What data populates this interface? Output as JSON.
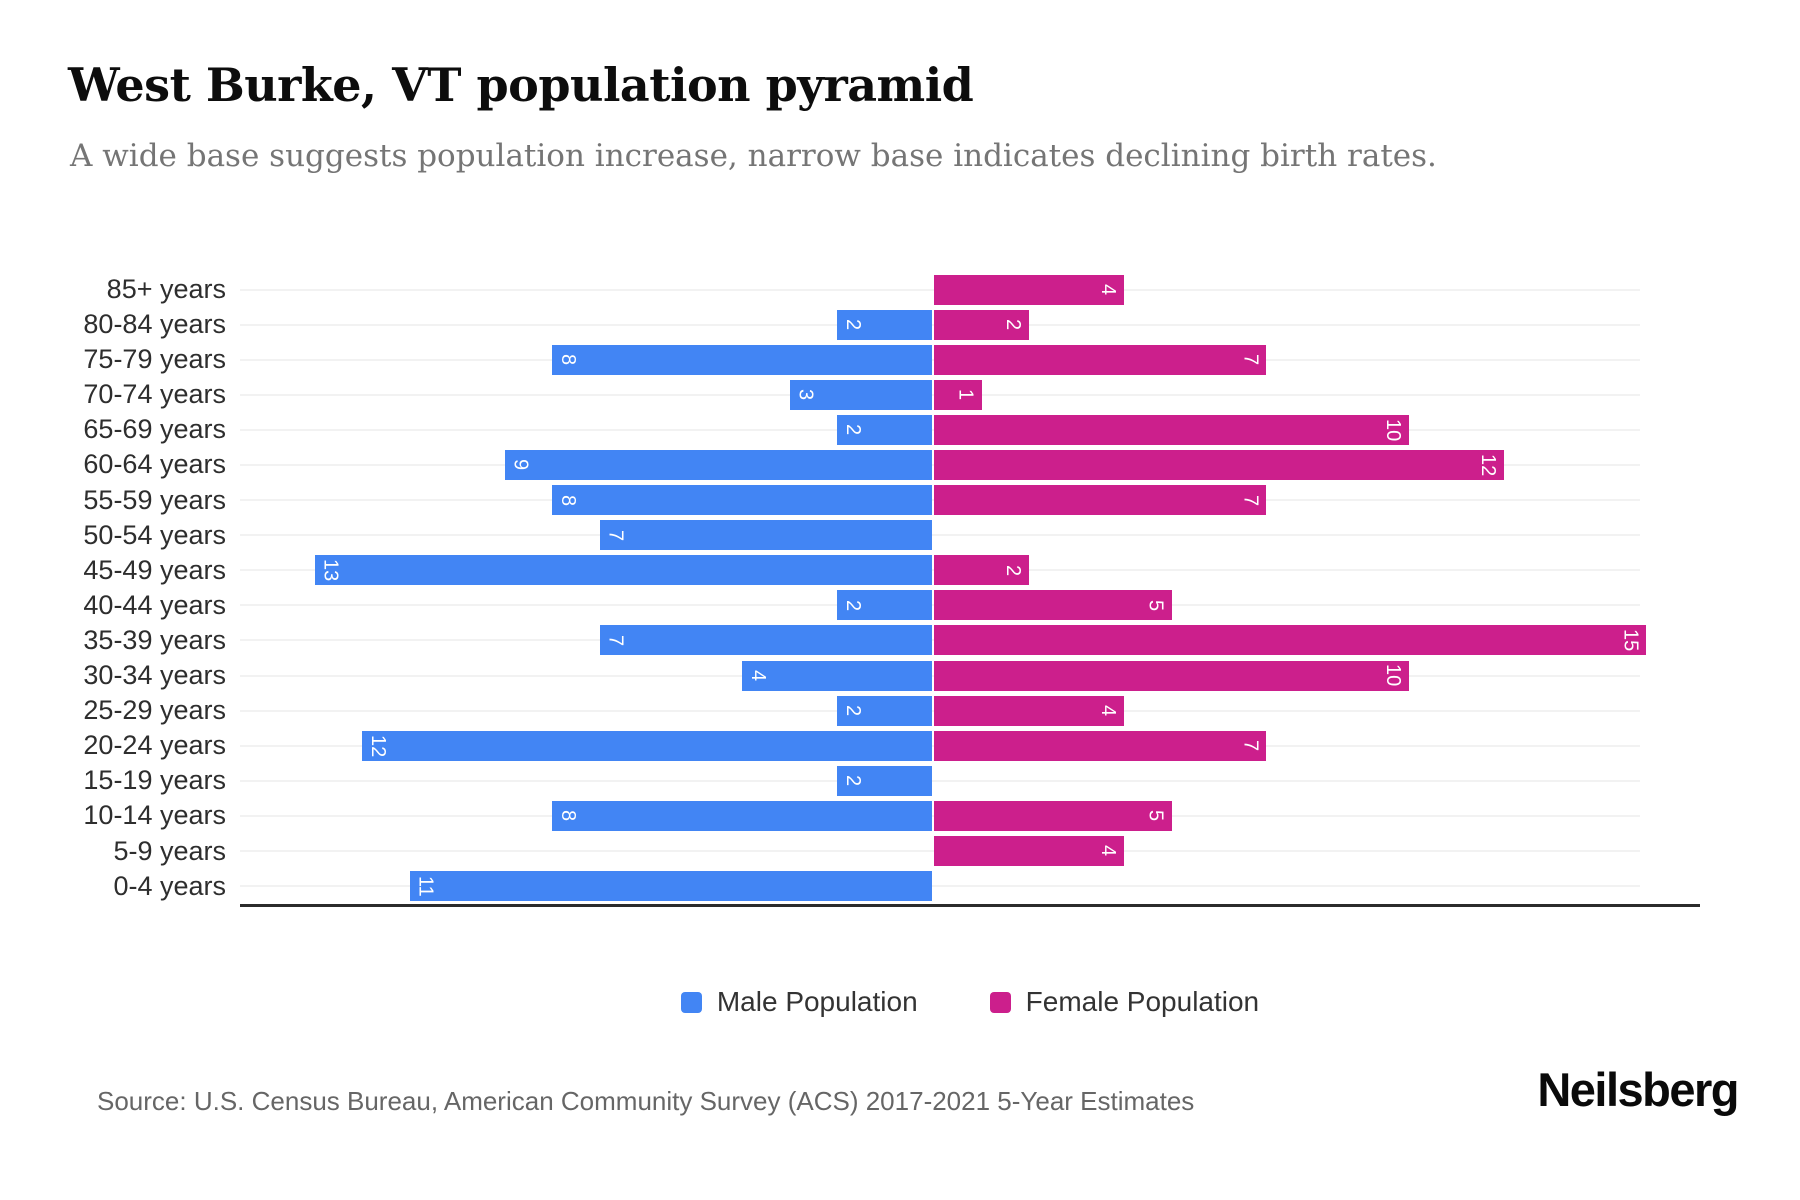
{
  "title": "West Burke, VT population pyramid",
  "subtitle": "A wide base suggests population increase, narrow base indicates declining birth rates.",
  "source": "Source: U.S. Census Bureau, American Community Survey (ACS) 2017-2021 5-Year Estimates",
  "brand": "Neilsberg",
  "legend": {
    "male_label": "Male Population",
    "female_label": "Female Population"
  },
  "colors": {
    "male": "#4285F4",
    "female": "#CC1F8C",
    "grid": "#f2f2f2",
    "axis": "#2b2b2b"
  },
  "chart_data": {
    "type": "bar",
    "variant": "population-pyramid",
    "title": "West Burke, VT population pyramid",
    "subtitle": "A wide base suggests population increase, narrow base indicates declining birth rates.",
    "categories": [
      "85+ years",
      "80-84 years",
      "75-79 years",
      "70-74 years",
      "65-69 years",
      "60-64 years",
      "55-59 years",
      "50-54 years",
      "45-49 years",
      "40-44 years",
      "35-39 years",
      "30-34 years",
      "25-29 years",
      "20-24 years",
      "15-19 years",
      "10-14 years",
      "5-9 years",
      "0-4 years"
    ],
    "series": [
      {
        "name": "Male Population",
        "direction": "left",
        "color": "#4285F4",
        "values": [
          0,
          2,
          8,
          3,
          2,
          9,
          8,
          7,
          13,
          2,
          7,
          4,
          2,
          12,
          2,
          8,
          0,
          11
        ]
      },
      {
        "name": "Female Population",
        "direction": "right",
        "color": "#CC1F8C",
        "values": [
          4,
          2,
          7,
          1,
          10,
          12,
          7,
          0,
          2,
          5,
          15,
          10,
          4,
          7,
          0,
          5,
          4,
          0
        ]
      }
    ],
    "value_axis_units_per_side": 15,
    "grid": true,
    "legend_position": "bottom",
    "bar_labels": "shown inside bar tip, rotated 90deg, hidden when value is 0"
  },
  "layout_scale": {
    "center_pct": 47.4,
    "unit_pct": 3.253
  }
}
